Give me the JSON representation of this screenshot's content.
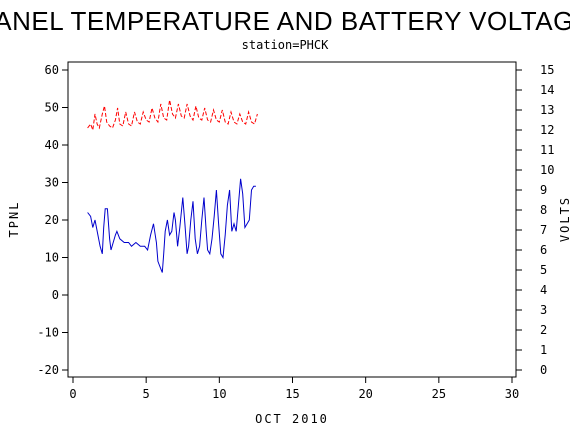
{
  "chart_data": {
    "type": "line",
    "title": "PANEL TEMPERATURE AND BATTERY VOLTAGE",
    "subtitle": "station=PHCK",
    "xlabel": "OCT 2010",
    "ylabel_left": "TPNL",
    "ylabel_right": "VOLTS",
    "xlim": [
      0,
      30
    ],
    "ylim_left": [
      -20,
      60
    ],
    "ylim_right": [
      0,
      15
    ],
    "x_ticks": [
      0,
      5,
      10,
      15,
      20,
      25,
      30
    ],
    "y_left_ticks": [
      -20,
      -10,
      0,
      10,
      20,
      30,
      40,
      50,
      60
    ],
    "y_right_ticks": [
      0,
      1,
      2,
      3,
      4,
      5,
      6,
      7,
      8,
      9,
      10,
      11,
      12,
      13,
      14,
      15
    ],
    "grid": false,
    "colors": {
      "tpnl": "#0000cc",
      "volts": "#ff0000"
    },
    "series": [
      {
        "axis": "left",
        "style": "solid",
        "x": [
          1.0,
          1.2,
          1.35,
          1.5,
          1.7,
          1.85,
          2.0,
          2.1,
          2.2,
          2.35,
          2.5,
          2.6,
          2.75,
          2.9,
          3.0,
          3.2,
          3.5,
          3.8,
          4.0,
          4.3,
          4.6,
          4.9,
          5.1,
          5.3,
          5.5,
          5.7,
          5.8,
          5.9,
          6.0,
          6.1,
          6.2,
          6.3,
          6.45,
          6.6,
          6.75,
          6.9,
          7.0,
          7.15,
          7.3,
          7.5,
          7.65,
          7.8,
          7.9,
          8.05,
          8.2,
          8.35,
          8.5,
          8.65,
          8.8,
          8.95,
          9.1,
          9.2,
          9.35,
          9.5,
          9.65,
          9.8,
          9.95,
          10.1,
          10.25,
          10.4,
          10.55,
          10.7,
          10.85,
          11.0,
          11.15,
          11.3,
          11.45,
          11.6,
          11.75,
          11.9,
          12.05,
          12.2,
          12.35,
          12.5
        ],
        "y": [
          22,
          21,
          18,
          20,
          16,
          13,
          11,
          18,
          23,
          23,
          15,
          12,
          14,
          16,
          17,
          15,
          14,
          14,
          13,
          14,
          13,
          13,
          12,
          16,
          19,
          14,
          9,
          8,
          7,
          6,
          11,
          17,
          20,
          16,
          17,
          22,
          20,
          13,
          18,
          26,
          19,
          11,
          13,
          20,
          25,
          15,
          11,
          13,
          20,
          26,
          17,
          12,
          11,
          15,
          21,
          28,
          19,
          11,
          10,
          16,
          24,
          28,
          17,
          19,
          17,
          24,
          31,
          27,
          18,
          19,
          20,
          28,
          29,
          29
        ]
      },
      {
        "axis": "right",
        "style": "dashed",
        "x": [
          1.0,
          1.2,
          1.35,
          1.5,
          1.65,
          1.8,
          2.0,
          2.15,
          2.3,
          2.5,
          2.7,
          2.9,
          3.05,
          3.2,
          3.4,
          3.6,
          3.8,
          4.0,
          4.2,
          4.4,
          4.6,
          4.8,
          5.0,
          5.2,
          5.4,
          5.6,
          5.8,
          6.0,
          6.2,
          6.4,
          6.6,
          6.8,
          7.0,
          7.2,
          7.4,
          7.6,
          7.8,
          8.0,
          8.2,
          8.4,
          8.6,
          8.8,
          9.0,
          9.2,
          9.4,
          9.6,
          9.8,
          10.0,
          10.2,
          10.4,
          10.6,
          10.8,
          11.0,
          11.2,
          11.4,
          11.6,
          11.8,
          12.0,
          12.2,
          12.4,
          12.6
        ],
        "y": [
          12.1,
          12.3,
          12.0,
          12.8,
          12.3,
          12.1,
          12.8,
          13.2,
          12.4,
          12.2,
          12.1,
          12.5,
          13.1,
          12.3,
          12.2,
          12.9,
          12.3,
          12.2,
          12.9,
          12.4,
          12.3,
          12.9,
          12.5,
          12.4,
          13.1,
          12.6,
          12.4,
          13.3,
          12.6,
          12.5,
          13.5,
          12.8,
          12.6,
          13.3,
          12.7,
          12.6,
          13.3,
          12.7,
          12.5,
          13.2,
          12.6,
          12.5,
          13.1,
          12.5,
          12.4,
          13.0,
          12.5,
          12.4,
          13.0,
          12.4,
          12.3,
          12.9,
          12.4,
          12.3,
          12.8,
          12.4,
          12.3,
          12.9,
          12.4,
          12.3,
          12.8
        ]
      }
    ]
  }
}
